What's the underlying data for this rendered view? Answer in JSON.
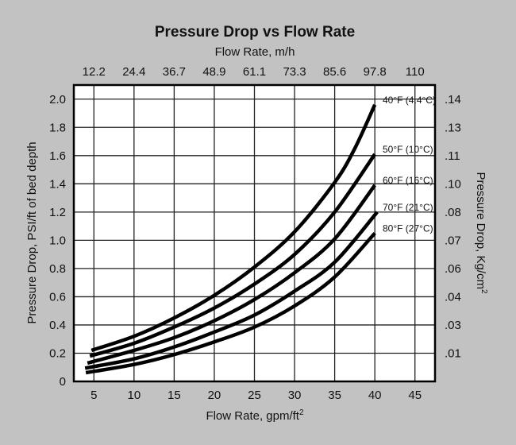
{
  "chart_data": {
    "type": "line",
    "title": "Pressure Drop vs Flow Rate",
    "xlabel": "Flow Rate, gpm/ft",
    "xlabel_sup": "2",
    "x2label": "Flow Rate, m/h",
    "ylabel": "Pressure Drop, PSI/ft of bed depth",
    "y2label": "Pressure Drop, Kg/cm",
    "y2label_sup": "2",
    "xlim": [
      2.5,
      47.5
    ],
    "ylim": [
      0,
      2.1
    ],
    "grid": true,
    "xticks": [
      5,
      10,
      15,
      20,
      25,
      30,
      35,
      40,
      45
    ],
    "xtick_labels": [
      "5",
      "10",
      "15",
      "20",
      "25",
      "30",
      "35",
      "40",
      "45"
    ],
    "x2tick_labels": [
      "12.2",
      "24.4",
      "36.7",
      "48.9",
      "61.1",
      "73.3",
      "85.6",
      "97.8",
      "110"
    ],
    "yticks": [
      0,
      0.2,
      0.4,
      0.6,
      0.8,
      1.0,
      1.2,
      1.4,
      1.6,
      1.8,
      2.0
    ],
    "ytick_labels": [
      "0",
      "0.2",
      "0.4",
      "0.6",
      "0.8",
      "1.0",
      "1.2",
      "1.4",
      "1.6",
      "1.8",
      "2.0"
    ],
    "y2tick_labels": [
      ".01",
      ".03",
      ".04",
      ".06",
      ".07",
      ".08",
      ".10",
      ".11",
      ".13",
      ".14"
    ],
    "background": "#c2c2c2",
    "plot_background": "#ffffff",
    "line_color": "#000000",
    "series": [
      {
        "name": "40°F (4.4°C)",
        "x": [
          4.7,
          10,
          15,
          20,
          25,
          30,
          35,
          37.5,
          40
        ],
        "y": [
          0.22,
          0.32,
          0.45,
          0.61,
          0.81,
          1.06,
          1.41,
          1.65,
          1.96
        ]
      },
      {
        "name": "50°F (10°C)",
        "x": [
          4.5,
          10,
          15,
          20,
          25,
          30,
          35,
          40
        ],
        "y": [
          0.18,
          0.27,
          0.385,
          0.52,
          0.69,
          0.9,
          1.2,
          1.61
        ]
      },
      {
        "name": "60°F (16°C)",
        "x": [
          4.2,
          10,
          15,
          20,
          25,
          30,
          35,
          40
        ],
        "y": [
          0.13,
          0.22,
          0.31,
          0.43,
          0.58,
          0.77,
          1.01,
          1.39
        ]
      },
      {
        "name": "70°F (21°C)",
        "x": [
          3.9,
          10,
          15,
          20,
          25,
          30,
          35,
          40.3
        ],
        "y": [
          0.094,
          0.16,
          0.244,
          0.35,
          0.47,
          0.64,
          0.845,
          1.2
        ]
      },
      {
        "name": "80°F (27°C)",
        "x": [
          4.0,
          10,
          15,
          20,
          25,
          30,
          35,
          40
        ],
        "y": [
          0.062,
          0.12,
          0.19,
          0.28,
          0.385,
          0.535,
          0.74,
          1.05
        ]
      }
    ]
  }
}
